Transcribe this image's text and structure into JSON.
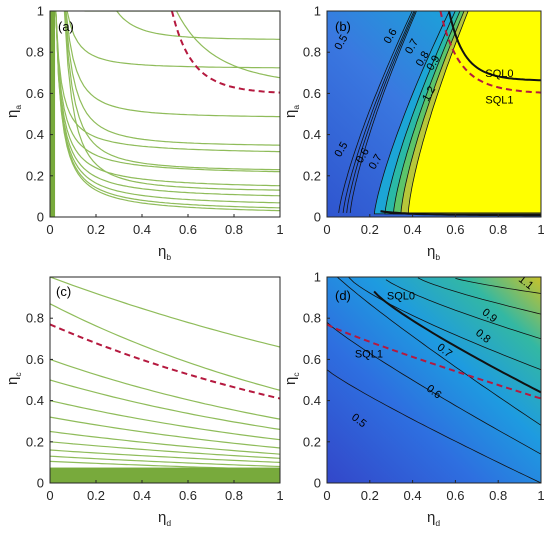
{
  "colors": {
    "contour_line": "#8fbc5a",
    "sql_dashed": "#b5193f",
    "dense_fill": "#78aa3c",
    "heat_low": "#3b5fd6",
    "heat_high": "#ffff00",
    "heat_line": "#111111",
    "frame": "#262626"
  },
  "chart_data": [
    {
      "panel_label": "(a)",
      "type": "line",
      "x_symbol": "η",
      "x_subscript": "b",
      "y_symbol": "η",
      "y_subscript": "a",
      "xlim": [
        0,
        1
      ],
      "ylim": [
        0,
        1
      ],
      "xticks": [
        "0",
        "0.2",
        "0.4",
        "0.6",
        "0.8",
        "1"
      ],
      "yticks": [
        "0",
        "0.2",
        "0.4",
        "0.6",
        "0.8",
        "1"
      ],
      "description": "hyperbolic contour lines; dense green band near eta_b = 0",
      "dashed_curve_y_at_x1": 0.595,
      "dashed_curve_x_at_y1": 0.53,
      "contour_asymptote_y": [
        0.3,
        0.2,
        0.13,
        0.08,
        0.045,
        0.02,
        0.006
      ]
    },
    {
      "panel_label": "(b)",
      "type": "heatmap",
      "x_symbol": "η",
      "x_subscript": "b",
      "y_symbol": "η",
      "y_subscript": "a",
      "xlim": [
        0,
        1
      ],
      "ylim": [
        0,
        1
      ],
      "xticks": [
        "0",
        "0.2",
        "0.4",
        "0.6",
        "0.8",
        "1"
      ],
      "yticks": [
        "0",
        "0.2",
        "0.4",
        "0.6",
        "0.8",
        "1"
      ],
      "contour_labels": [
        {
          "text": "0.5",
          "x": 0.08,
          "y": 0.84
        },
        {
          "text": "0.6",
          "x": 0.31,
          "y": 0.87
        },
        {
          "text": "0.7",
          "x": 0.41,
          "y": 0.82
        },
        {
          "text": "0.8",
          "x": 0.46,
          "y": 0.76
        },
        {
          "text": "0.9",
          "x": 0.51,
          "y": 0.74
        },
        {
          "text": "1.2",
          "x": 0.49,
          "y": 0.59
        },
        {
          "text": "0.5",
          "x": 0.08,
          "y": 0.32
        },
        {
          "text": "0.6",
          "x": 0.18,
          "y": 0.29
        },
        {
          "text": "0.7",
          "x": 0.24,
          "y": 0.26
        }
      ],
      "annotations": [
        {
          "text": "SQL0",
          "x": 0.74,
          "y": 0.68,
          "color": "#000000"
        },
        {
          "text": "SQL1",
          "x": 0.74,
          "y": 0.55,
          "color": "#b5193f"
        }
      ]
    },
    {
      "panel_label": "(c)",
      "type": "line",
      "x_symbol": "η",
      "x_subscript": "d",
      "y_symbol": "η",
      "y_subscript": "c",
      "xlim": [
        0,
        1
      ],
      "ylim": [
        0,
        1
      ],
      "xticks": [
        "0",
        "0.2",
        "0.4",
        "0.6",
        "0.8",
        "1"
      ],
      "yticks": [
        "0",
        "0.2",
        "0.4",
        "0.6",
        "0.8"
      ],
      "description": "decreasing contour lines; dense green band near eta_c = 0",
      "dashed_curve": {
        "y_at_0": 0.77,
        "y_at_1": 0.41
      },
      "contour_lines": [
        {
          "y_at_0": 1.0,
          "y_at_1": 0.66
        },
        {
          "y_at_0": 0.87,
          "y_at_1": 0.45
        },
        {
          "y_at_0": 0.6,
          "y_at_1": 0.31
        },
        {
          "y_at_0": 0.5,
          "y_at_1": 0.26
        },
        {
          "y_at_0": 0.4,
          "y_at_1": 0.21
        },
        {
          "y_at_0": 0.32,
          "y_at_1": 0.17
        },
        {
          "y_at_0": 0.25,
          "y_at_1": 0.14
        },
        {
          "y_at_0": 0.2,
          "y_at_1": 0.12
        },
        {
          "y_at_0": 0.16,
          "y_at_1": 0.1
        },
        {
          "y_at_0": 0.13,
          "y_at_1": 0.08
        },
        {
          "y_at_0": 0.105,
          "y_at_1": 0.065
        }
      ]
    },
    {
      "panel_label": "(d)",
      "type": "heatmap",
      "x_symbol": "η",
      "x_subscript": "d",
      "y_symbol": "η",
      "y_subscript": "c",
      "xlim": [
        0,
        1
      ],
      "ylim": [
        0,
        1
      ],
      "xticks": [
        "0",
        "0.2",
        "0.4",
        "0.6",
        "0.8",
        "1"
      ],
      "yticks": [
        "0",
        "0.2",
        "0.4",
        "0.6",
        "0.8",
        "1"
      ],
      "contour_labels": [
        {
          "text": "1.1",
          "x": 0.92,
          "y": 0.96
        },
        {
          "text": "0.9",
          "x": 0.75,
          "y": 0.8
        },
        {
          "text": "0.8",
          "x": 0.72,
          "y": 0.7
        },
        {
          "text": "0.7",
          "x": 0.54,
          "y": 0.63
        },
        {
          "text": "0.6",
          "x": 0.49,
          "y": 0.43
        },
        {
          "text": "0.5",
          "x": 0.14,
          "y": 0.29
        }
      ],
      "annotations": [
        {
          "text": "SQL0",
          "x": 0.28,
          "y": 0.89,
          "color": "#000000"
        },
        {
          "text": "SQL1",
          "x": 0.13,
          "y": 0.61,
          "color": "#b5193f"
        }
      ]
    }
  ]
}
